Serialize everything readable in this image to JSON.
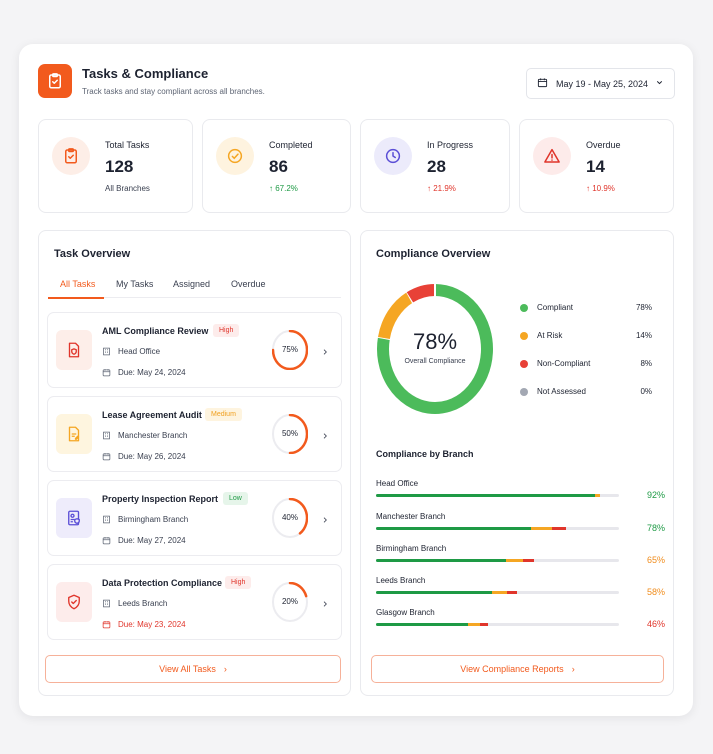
{
  "header": {
    "title": "Tasks & Compliance",
    "subtitle": "Track tasks and stay compliant across all branches.",
    "date_range": "May 19 - May 25, 2024"
  },
  "stats": [
    {
      "label": "Total Tasks",
      "value": "128",
      "foot": "All Branches"
    },
    {
      "label": "Completed",
      "value": "86",
      "foot": "67.2%"
    },
    {
      "label": "In Progress",
      "value": "28",
      "foot": "21.9%"
    },
    {
      "label": "Overdue",
      "value": "14",
      "foot": "10.9%"
    }
  ],
  "task_overview": {
    "title": "Task Overview",
    "tabs": [
      "All Tasks",
      "My Tasks",
      "Assigned",
      "Overdue"
    ],
    "active_tab": "All Tasks",
    "tasks": [
      {
        "title": "AML Compliance Review",
        "priority": "High",
        "branch": "Head Office",
        "due": "Due: May 24, 2024",
        "progress": 75,
        "progress_label": "75%"
      },
      {
        "title": "Lease Agreement Audit",
        "priority": "Medium",
        "branch": "Manchester Branch",
        "due": "Due: May 26, 2024",
        "progress": 50,
        "progress_label": "50%"
      },
      {
        "title": "Property Inspection Report",
        "priority": "Low",
        "branch": "Birmingham Branch",
        "due": "Due: May 27, 2024",
        "progress": 40,
        "progress_label": "40%"
      },
      {
        "title": "Data Protection Compliance",
        "priority": "High",
        "branch": "Leeds Branch",
        "due": "Due: May 23, 2024",
        "progress": 20,
        "progress_label": "20%"
      }
    ],
    "view_all": "View All Tasks"
  },
  "compliance": {
    "title": "Compliance Overview",
    "overall_value": "78%",
    "overall_label": "Overall Compliance",
    "legend": [
      {
        "name": "Compliant",
        "pct": "78%",
        "color": "#4cbb5b"
      },
      {
        "name": "At Risk",
        "pct": "14%",
        "color": "#f5a623"
      },
      {
        "name": "Non-Compliant",
        "pct": "8%",
        "color": "#e84137"
      },
      {
        "name": "Not Assessed",
        "pct": "0%",
        "color": "#a3a8b3"
      }
    ],
    "by_branch_title": "Compliance by Branch",
    "branches": [
      {
        "name": "Head Office",
        "pct": "92%",
        "value": 92,
        "color": "#1e9a45"
      },
      {
        "name": "Manchester Branch",
        "pct": "78%",
        "value": 78,
        "color": "#1e9a45"
      },
      {
        "name": "Birmingham Branch",
        "pct": "65%",
        "value": 65,
        "color": "#f08c1c"
      },
      {
        "name": "Leeds Branch",
        "pct": "58%",
        "value": 58,
        "color": "#f08c1c"
      },
      {
        "name": "Glasgow Branch",
        "pct": "46%",
        "value": 46,
        "color": "#e0352b"
      }
    ],
    "view_reports": "View Compliance Reports"
  },
  "chart_data": {
    "type": "pie",
    "title": "Compliance Overview",
    "categories": [
      "Compliant",
      "At Risk",
      "Non-Compliant",
      "Not Assessed"
    ],
    "values": [
      78,
      14,
      8,
      0
    ]
  }
}
